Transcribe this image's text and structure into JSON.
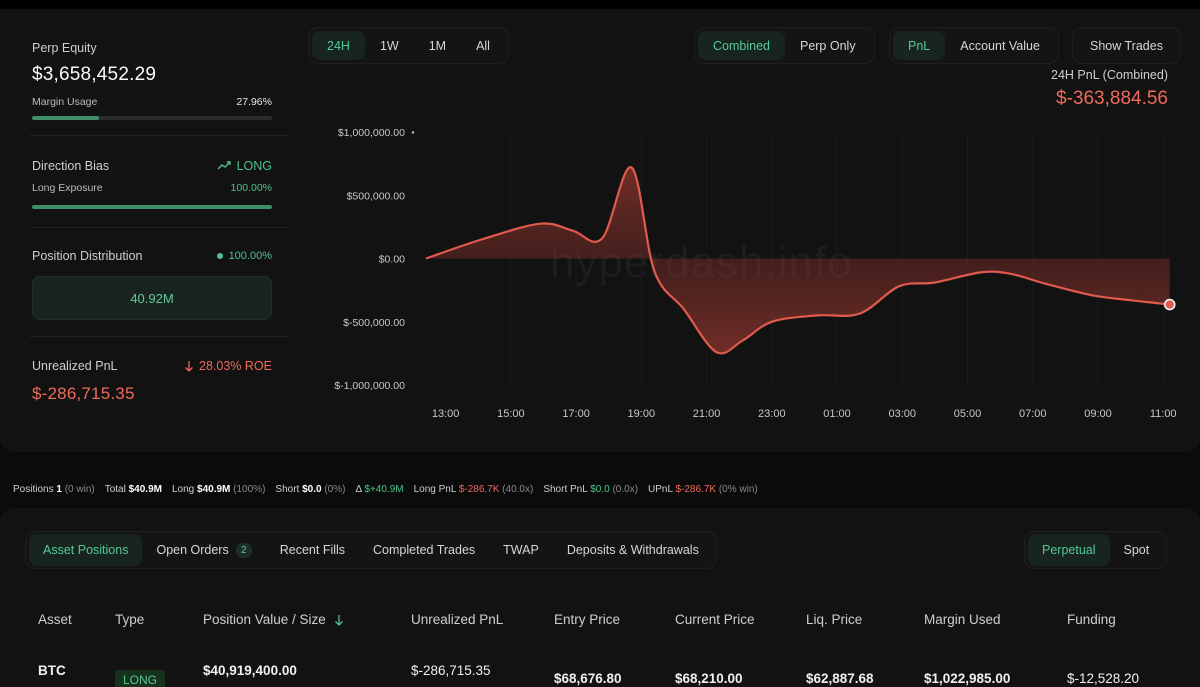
{
  "metrics": {
    "perp_equity_label": "Perp Equity",
    "perp_equity_value": "$3,658,452.29",
    "margin_usage_label": "Margin Usage",
    "margin_usage_value": "27.96%",
    "margin_usage_fraction": 0.2796,
    "direction_bias_label": "Direction Bias",
    "direction_bias_value": "LONG",
    "long_exposure_label": "Long Exposure",
    "long_exposure_value": "100.00%",
    "long_exposure_fraction": 1.0,
    "position_distribution_label": "Position Distribution",
    "position_distribution_pct": "100.00%",
    "position_distribution_amount": "40.92M",
    "unrealized_pnl_label": "Unrealized PnL",
    "unrealized_roe": "28.03% ROE",
    "unrealized_pnl_value": "$-286,715.35"
  },
  "range_tabs": [
    "24H",
    "1W",
    "1M",
    "All"
  ],
  "range_active": "24H",
  "mode_tabs": [
    "Combined",
    "Perp Only"
  ],
  "mode_active": "Combined",
  "metric_tabs": [
    "PnL",
    "Account Value"
  ],
  "metric_active": "PnL",
  "show_trades_label": "Show Trades",
  "pnl_summary_label": "24H PnL (Combined)",
  "pnl_summary_value": "$-363,884.56",
  "watermark": "hyperdash.info",
  "chart_data": {
    "type": "area",
    "x_ticks": [
      "13:00",
      "15:00",
      "17:00",
      "19:00",
      "21:00",
      "23:00",
      "01:00",
      "03:00",
      "05:00",
      "07:00",
      "09:00",
      "11:00"
    ],
    "y_ticks": [
      "$1,000,000.00",
      "$500,000.00",
      "$0.00",
      "$-500,000.00",
      "$-1,000,000.00"
    ],
    "ylim": [
      -1000000,
      1000000
    ],
    "x": [
      12.4,
      14.1,
      15.9,
      16.9,
      17.8,
      18.7,
      19.4,
      20.3,
      21.3,
      22.1,
      23.0,
      24.4,
      25.7,
      26.9,
      28.0,
      29.4,
      30.3,
      31.4,
      32.8,
      34.0,
      35.2
    ],
    "y": [
      0,
      150000,
      275000,
      220000,
      160000,
      720000,
      -100000,
      -400000,
      -740000,
      -650000,
      -500000,
      -450000,
      -435000,
      -220000,
      -190000,
      -110000,
      -120000,
      -200000,
      -290000,
      -330000,
      -364000
    ],
    "series_color": "#e05a4d"
  },
  "stats": {
    "positions_label": "Positions",
    "positions_value": "1",
    "positions_win": "(0 win)",
    "total_label": "Total",
    "total_value": "$40.9M",
    "long_label": "Long",
    "long_value": "$40.9M",
    "long_pct": "(100%)",
    "short_label": "Short",
    "short_value": "$0.0",
    "short_pct": "(0%)",
    "delta_label": "Δ",
    "delta_value": "$+40.9M",
    "long_pnl_label": "Long PnL",
    "long_pnl_value": "$-286.7K",
    "long_pnl_x": "(40.0x)",
    "short_pnl_label": "Short PnL",
    "short_pnl_value": "$0.0",
    "short_pnl_x": "(0.0x)",
    "upnl_label": "UPnL",
    "upnl_value": "$-286.7K",
    "upnl_win": "(0% win)"
  },
  "bottom_tabs": {
    "asset_positions": "Asset Positions",
    "open_orders": "Open Orders",
    "open_orders_count": "2",
    "recent_fills": "Recent Fills",
    "completed_trades": "Completed Trades",
    "twap": "TWAP",
    "deposits": "Deposits & Withdrawals"
  },
  "market_tabs": [
    "Perpetual",
    "Spot"
  ],
  "market_active": "Perpetual",
  "table": {
    "headers": {
      "asset": "Asset",
      "type": "Type",
      "position_value": "Position Value / Size",
      "unrealized_pnl": "Unrealized PnL",
      "entry_price": "Entry Price",
      "current_price": "Current Price",
      "liq_price": "Liq. Price",
      "margin_used": "Margin Used",
      "funding": "Funding"
    },
    "row": {
      "asset": "BTC",
      "type": "LONG",
      "position_value": "$40,919,400.00",
      "unrealized_pnl": "$-286,715.35",
      "entry_price": "$68,676.80",
      "current_price": "$68,210.00",
      "liq_price": "$62,887.68",
      "margin_used": "$1,022,985.00",
      "funding": "$-12,528.20"
    }
  }
}
